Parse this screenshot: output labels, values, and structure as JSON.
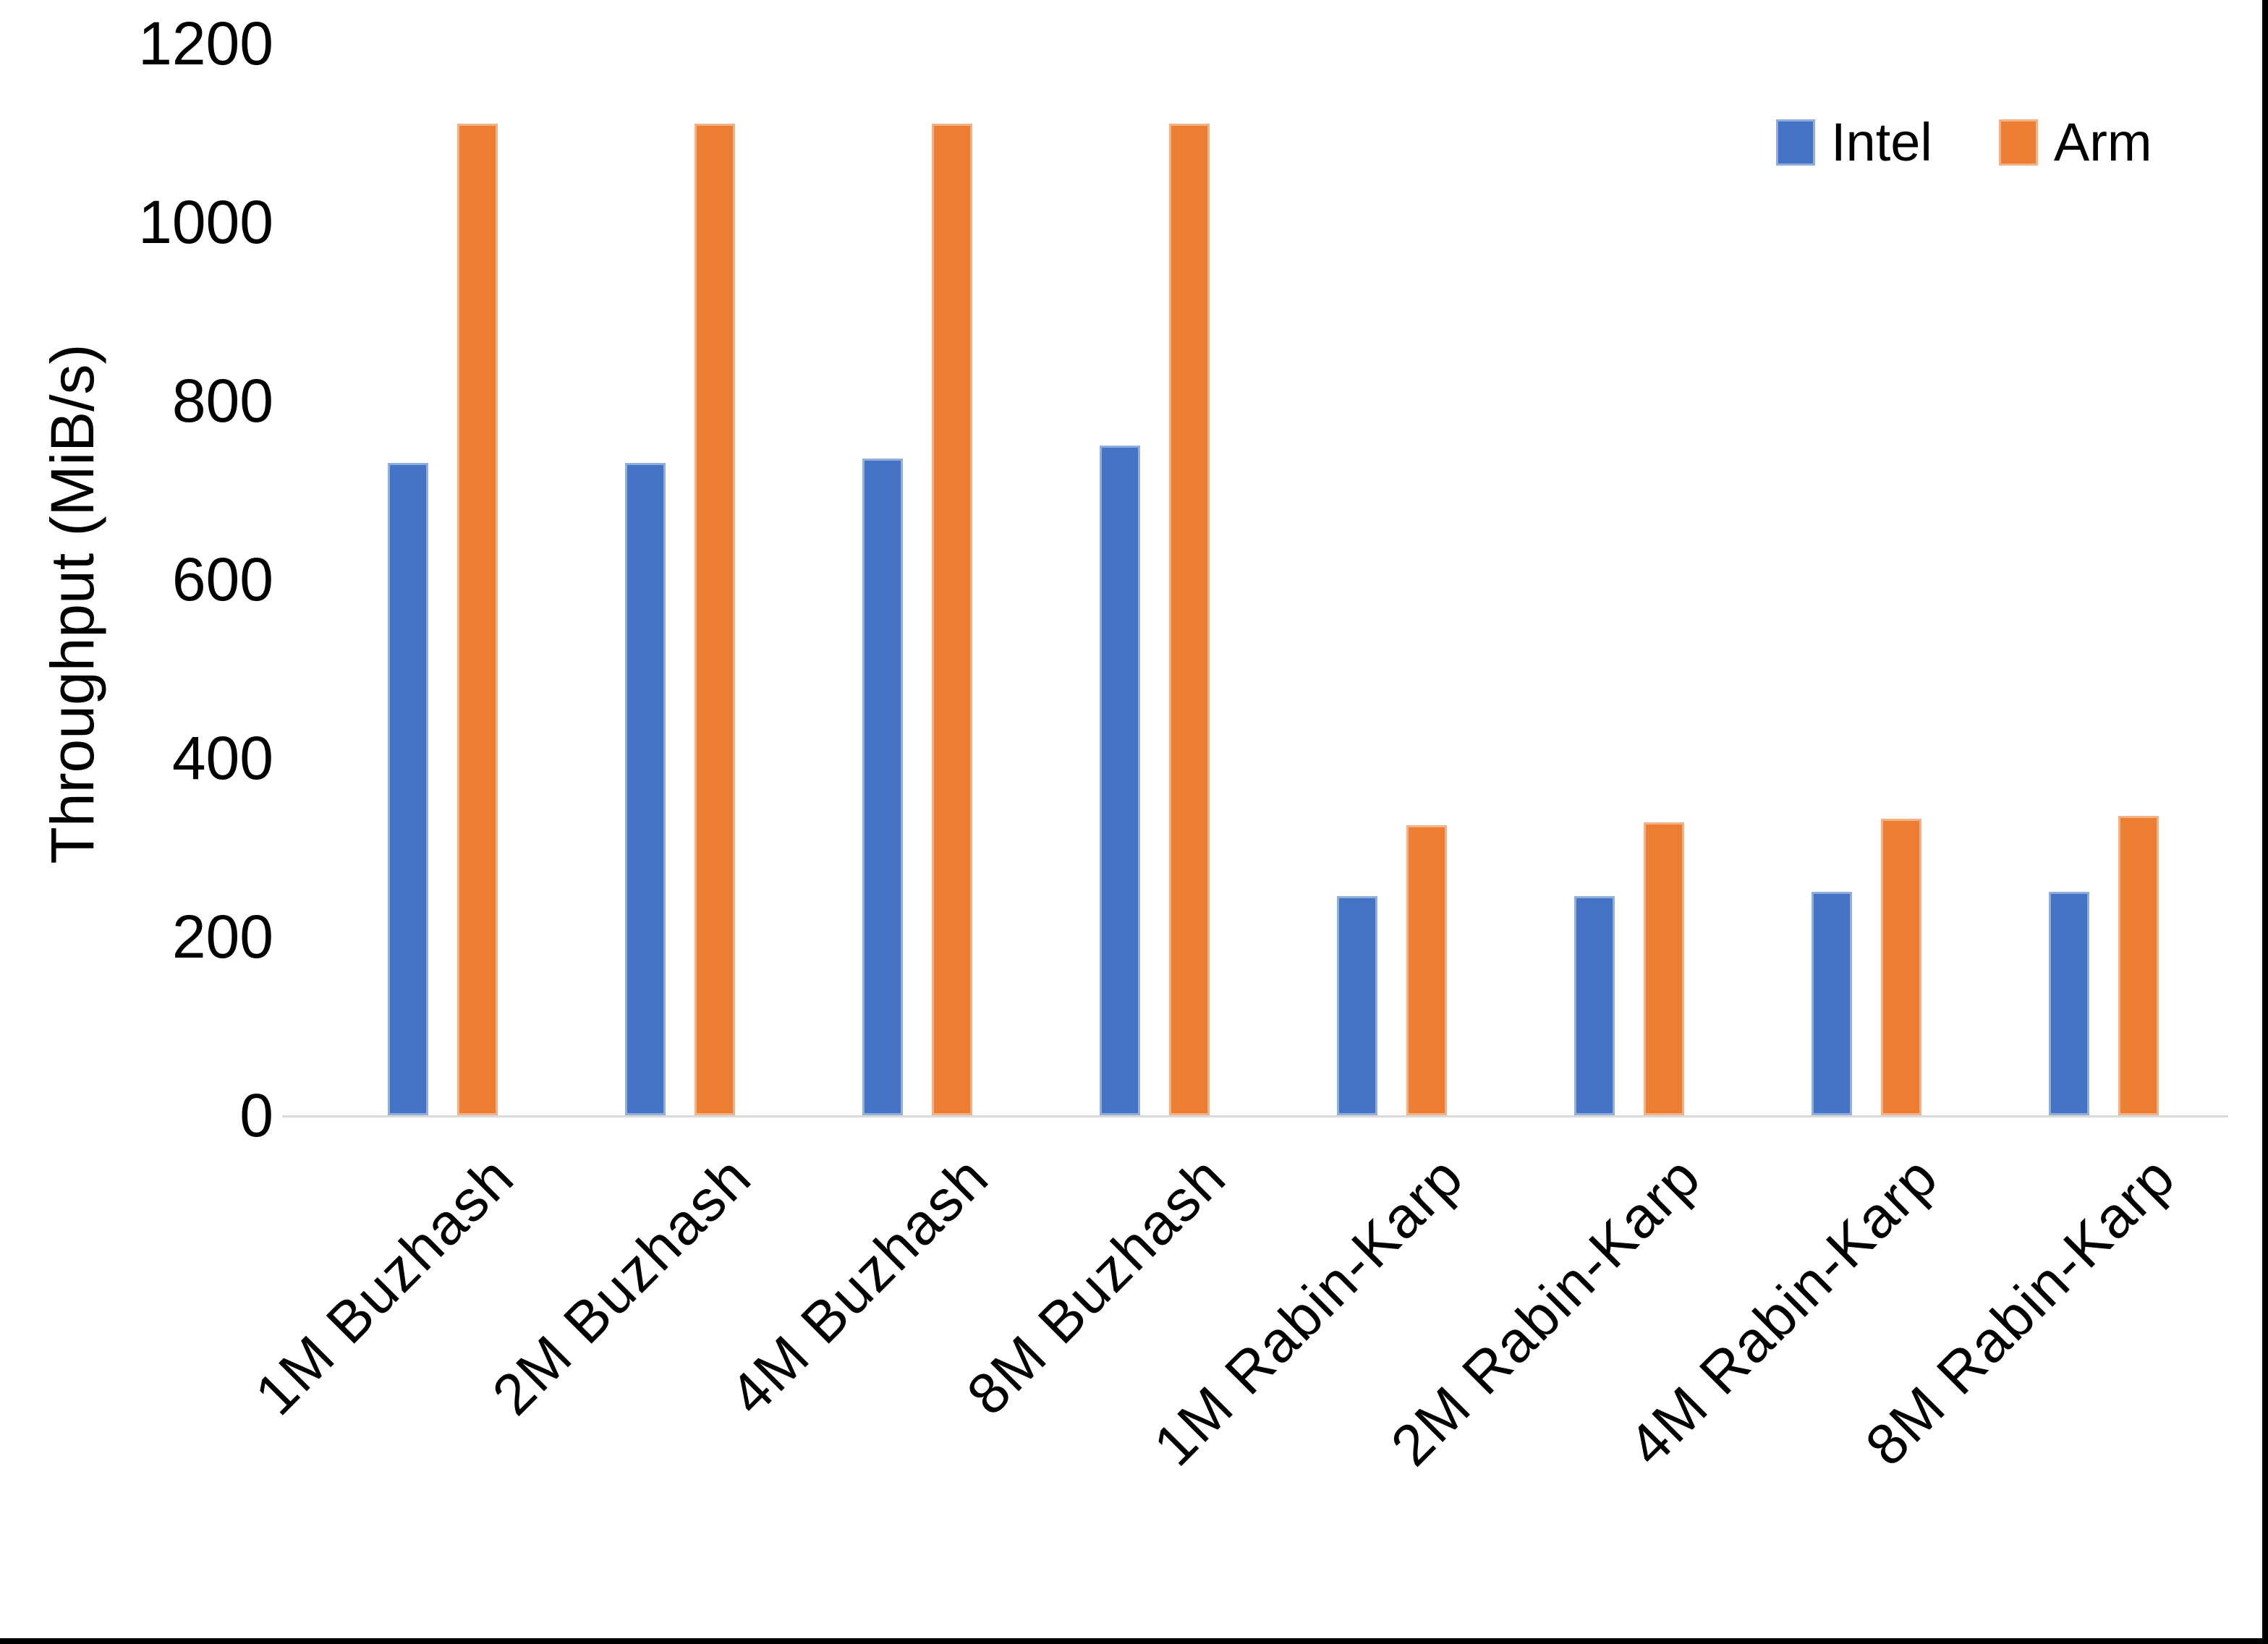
{
  "chart_data": {
    "type": "bar",
    "title": "",
    "xlabel": "",
    "ylabel": "Throughput (MiB/s)",
    "ylim": [
      0,
      1200
    ],
    "ytick_step": 200,
    "yticks": [
      0,
      200,
      400,
      600,
      800,
      1000,
      1200
    ],
    "grid": false,
    "legend_position": "top-right",
    "categories": [
      "1M Buzhash",
      "2M Buzhash",
      "4M Buzhash",
      "8M Buzhash",
      "1M Rabin-Karp",
      "2M Rabin-Karp",
      "4M Rabin-Karp",
      "8M Rabin-Karp"
    ],
    "series": [
      {
        "name": "Intel",
        "color": "#4472C4",
        "border_color": "#8FAEDC",
        "values": [
          730,
          730,
          735,
          750,
          245,
          245,
          250,
          250
        ]
      },
      {
        "name": "Arm",
        "color": "#ED7D31",
        "border_color": "#F4B183",
        "values": [
          1110,
          1110,
          1110,
          1110,
          325,
          328,
          332,
          335
        ]
      }
    ]
  },
  "frame": {
    "background": "#FFFFFF",
    "axis_line_color": "#D9D9D9",
    "text_color": "#000000",
    "edge_border_color": "#000000"
  }
}
